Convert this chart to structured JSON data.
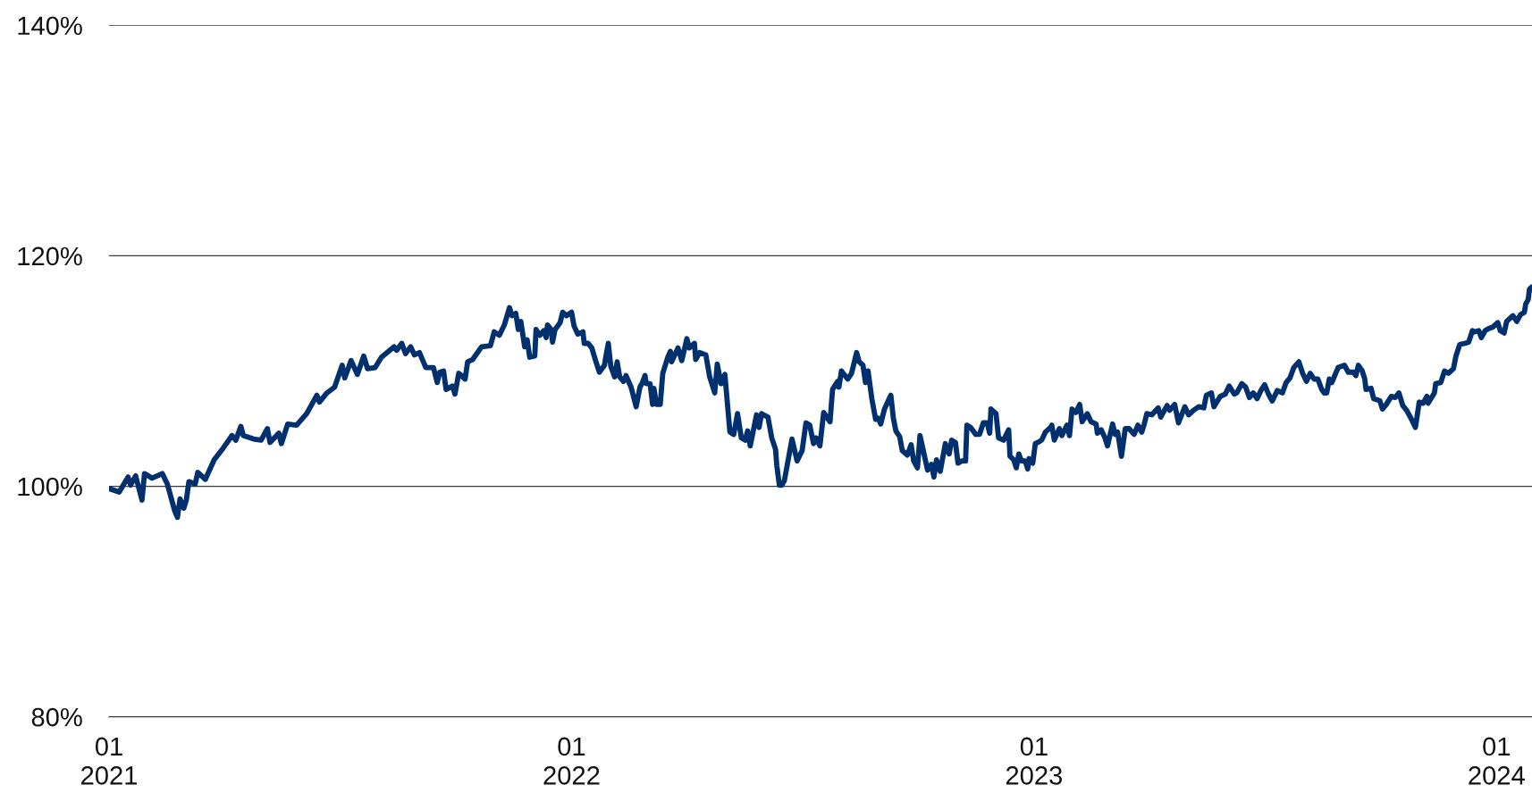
{
  "chart_data": {
    "type": "line",
    "color": "#00306e",
    "grid": "y",
    "xlim": [
      "2021-01-01",
      "2024-01-29"
    ],
    "ylim": [
      80,
      140
    ],
    "xticks": [
      {
        "value": "2021-01-01",
        "label": "01\n2021"
      },
      {
        "value": "2022-01-01",
        "label": "01\n2022"
      },
      {
        "value": "2023-01-01",
        "label": "01\n2023"
      },
      {
        "value": "2024-01-01",
        "label": "01\n2024"
      }
    ],
    "yticks": [
      {
        "value": 80,
        "label": "80%"
      },
      {
        "value": 100,
        "label": "100%"
      },
      {
        "value": 120,
        "label": "120%"
      },
      {
        "value": 140,
        "label": "140%"
      }
    ],
    "x": [
      "2021-01-01",
      "2021-01-09",
      "2021-01-16",
      "2021-01-18",
      "2021-01-22",
      "2021-01-27",
      "2021-01-29",
      "2021-02-04",
      "2021-02-12",
      "2021-02-16",
      "2021-02-22",
      "2021-02-24",
      "2021-02-26",
      "2021-03-01",
      "2021-03-03",
      "2021-03-05",
      "2021-03-10",
      "2021-03-12",
      "2021-03-18",
      "2021-03-25",
      "2021-04-01",
      "2021-04-08",
      "2021-04-11",
      "2021-04-15",
      "2021-04-17",
      "2021-04-25",
      "2021-05-01",
      "2021-05-06",
      "2021-05-08",
      "2021-05-15",
      "2021-05-17",
      "2021-05-22",
      "2021-05-29",
      "2021-06-06",
      "2021-06-14",
      "2021-06-16",
      "2021-06-22",
      "2021-06-28",
      "2021-07-04",
      "2021-07-06",
      "2021-07-11",
      "2021-07-16",
      "2021-07-21",
      "2021-07-24",
      "2021-07-30",
      "2021-08-04",
      "2021-08-14",
      "2021-08-16",
      "2021-08-20",
      "2021-08-23",
      "2021-08-27",
      "2021-08-30",
      "2021-09-03",
      "2021-09-08",
      "2021-09-14",
      "2021-09-17",
      "2021-09-19",
      "2021-09-22",
      "2021-09-24",
      "2021-09-29",
      "2021-10-01",
      "2021-10-04",
      "2021-10-09",
      "2021-10-11",
      "2021-10-15",
      "2021-10-22",
      "2021-10-29",
      "2021-11-01",
      "2021-11-05",
      "2021-11-09",
      "2021-11-13",
      "2021-11-15",
      "2021-11-18",
      "2021-11-20",
      "2021-11-22",
      "2021-11-25",
      "2021-11-27",
      "2021-11-29",
      "2021-12-03",
      "2021-12-04",
      "2021-12-07",
      "2021-12-10",
      "2021-12-12",
      "2021-12-13",
      "2021-12-16",
      "2021-12-17",
      "2021-12-19",
      "2021-12-23",
      "2021-12-25",
      "2021-12-28",
      "2022-01-01",
      "2022-01-03",
      "2022-01-06",
      "2022-01-10",
      "2022-01-11",
      "2022-01-14",
      "2022-01-17",
      "2022-01-20",
      "2022-01-23",
      "2022-01-27",
      "2022-01-28",
      "2022-01-30",
      "2022-02-01",
      "2022-02-04",
      "2022-02-06",
      "2022-02-08",
      "2022-02-11",
      "2022-02-13",
      "2022-02-17",
      "2022-02-21",
      "2022-02-24",
      "2022-02-26",
      "2022-02-28",
      "2022-03-01",
      "2022-03-04",
      "2022-03-06",
      "2022-03-07",
      "2022-03-09",
      "2022-03-12",
      "2022-03-14",
      "2022-03-18",
      "2022-03-20",
      "2022-03-21",
      "2022-03-26",
      "2022-03-29",
      "2022-04-02",
      "2022-04-04",
      "2022-04-08",
      "2022-04-09",
      "2022-04-12",
      "2022-04-17",
      "2022-04-20",
      "2022-04-24",
      "2022-04-26",
      "2022-04-29",
      "2022-05-02",
      "2022-05-06",
      "2022-05-09",
      "2022-05-12",
      "2022-05-15",
      "2022-05-18",
      "2022-05-20",
      "2022-05-22",
      "2022-05-27",
      "2022-05-29",
      "2022-05-31",
      "2022-06-05",
      "2022-06-08",
      "2022-06-11",
      "2022-06-12",
      "2022-06-14",
      "2022-06-16",
      "2022-06-18",
      "2022-06-24",
      "2022-06-28",
      "2022-07-02",
      "2022-07-05",
      "2022-07-08",
      "2022-07-11",
      "2022-07-13",
      "2022-07-16",
      "2022-07-19",
      "2022-07-24",
      "2022-07-26",
      "2022-07-30",
      "2022-07-31",
      "2022-08-02",
      "2022-08-07",
      "2022-08-10",
      "2022-08-14",
      "2022-08-16",
      "2022-08-19",
      "2022-08-21",
      "2022-08-23",
      "2022-08-26",
      "2022-08-29",
      "2022-08-31",
      "2022-09-02",
      "2022-09-05",
      "2022-09-10",
      "2022-09-12",
      "2022-09-14",
      "2022-09-17",
      "2022-09-19",
      "2022-09-23",
      "2022-09-26",
      "2022-09-28",
      "2022-10-01",
      "2022-10-03",
      "2022-10-09",
      "2022-10-12",
      "2022-10-14",
      "2022-10-16",
      "2022-10-19",
      "2022-10-23",
      "2022-10-26",
      "2022-10-28",
      "2022-10-31",
      "2022-11-02",
      "2022-11-05",
      "2022-11-08",
      "2022-11-09",
      "2022-11-12",
      "2022-11-16",
      "2022-11-19",
      "2022-11-22",
      "2022-11-25",
      "2022-11-27",
      "2022-11-28",
      "2022-12-02",
      "2022-12-04",
      "2022-12-08",
      "2022-12-12",
      "2022-12-13",
      "2022-12-16",
      "2022-12-18",
      "2022-12-20",
      "2022-12-22",
      "2022-12-25",
      "2022-12-27",
      "2022-12-28",
      "2022-12-31",
      "2023-01-02",
      "2023-01-04",
      "2023-01-07",
      "2023-01-10",
      "2023-01-14",
      "2023-01-15",
      "2023-01-17",
      "2023-01-21",
      "2023-01-23",
      "2023-01-27",
      "2023-01-29",
      "2023-01-31",
      "2023-02-03",
      "2023-02-06",
      "2023-02-08",
      "2023-02-12",
      "2023-02-15",
      "2023-02-19",
      "2023-02-20",
      "2023-02-23",
      "2023-02-26",
      "2023-02-28",
      "2023-03-04",
      "2023-03-06",
      "2023-03-08",
      "2023-03-11",
      "2023-03-14",
      "2023-03-17",
      "2023-03-21",
      "2023-03-24",
      "2023-03-27",
      "2023-03-29",
      "2023-03-31",
      "2023-04-04",
      "2023-04-09",
      "2023-04-11",
      "2023-04-16",
      "2023-04-18",
      "2023-04-22",
      "2023-04-25",
      "2023-04-30",
      "2023-05-03",
      "2023-05-07",
      "2023-05-11",
      "2023-05-15",
      "2023-05-17",
      "2023-05-21",
      "2023-05-23",
      "2023-05-28",
      "2023-06-01",
      "2023-06-04",
      "2023-06-08",
      "2023-06-10",
      "2023-06-14",
      "2023-06-17",
      "2023-06-20",
      "2023-06-23",
      "2023-06-26",
      "2023-06-29",
      "2023-07-02",
      "2023-07-05",
      "2023-07-08",
      "2023-07-12",
      "2023-07-16",
      "2023-07-19",
      "2023-07-22",
      "2023-07-25",
      "2023-07-29",
      "2023-08-01",
      "2023-08-04",
      "2023-08-07",
      "2023-08-10",
      "2023-08-13",
      "2023-08-16",
      "2023-08-18",
      "2023-08-20",
      "2023-08-22",
      "2023-08-24",
      "2023-08-29",
      "2023-09-03",
      "2023-09-06",
      "2023-09-10",
      "2023-09-12",
      "2023-09-14",
      "2023-09-17",
      "2023-09-19",
      "2023-09-20",
      "2023-09-24",
      "2023-09-26",
      "2023-09-29",
      "2023-10-01",
      "2023-10-03",
      "2023-10-06",
      "2023-10-10",
      "2023-10-13",
      "2023-10-16",
      "2023-10-19",
      "2023-10-22",
      "2023-10-25",
      "2023-10-29",
      "2023-11-01",
      "2023-11-04",
      "2023-11-07",
      "2023-11-08",
      "2023-11-13",
      "2023-11-14",
      "2023-11-18",
      "2023-11-21",
      "2023-11-24",
      "2023-11-28",
      "2023-11-30",
      "2023-12-03",
      "2023-12-07",
      "2023-12-10",
      "2023-12-13",
      "2023-12-15",
      "2023-12-18",
      "2023-12-20",
      "2023-12-23",
      "2023-12-26",
      "2023-12-29",
      "2024-01-02",
      "2024-01-04",
      "2024-01-07",
      "2024-01-09",
      "2024-01-14",
      "2024-01-17",
      "2024-01-20",
      "2024-01-23",
      "2024-01-24",
      "2024-01-26",
      "2024-01-27",
      "2024-01-29"
    ],
    "values": [
      99.8,
      99.5,
      100.8,
      100.1,
      100.9,
      98.8,
      101.1,
      100.7,
      101.1,
      100.2,
      97.8,
      97.3,
      98.9,
      98.1,
      98.8,
      100.4,
      100.2,
      101.2,
      100.6,
      102.3,
      103.3,
      104.4,
      104.0,
      105.2,
      104.4,
      104.1,
      104.0,
      105.0,
      103.8,
      104.6,
      103.7,
      105.4,
      105.3,
      106.3,
      107.9,
      107.3,
      108.1,
      108.6,
      110.5,
      109.4,
      110.9,
      109.7,
      111.3,
      110.2,
      110.3,
      111.2,
      112.1,
      111.8,
      112.4,
      111.5,
      112.1,
      111.4,
      111.6,
      110.3,
      110.3,
      109.0,
      109.9,
      110.0,
      108.4,
      108.7,
      108.0,
      109.8,
      109.3,
      110.8,
      111.0,
      112.1,
      112.2,
      113.4,
      113.1,
      114.0,
      115.5,
      114.8,
      115.0,
      113.6,
      114.3,
      112.1,
      112.7,
      111.2,
      111.3,
      113.6,
      113.1,
      113.5,
      112.9,
      114.0,
      113.6,
      112.5,
      113.6,
      114.2,
      115.1,
      114.8,
      115.1,
      113.9,
      113.2,
      113.4,
      112.4,
      112.4,
      112.0,
      110.9,
      109.9,
      110.5,
      111.2,
      112.4,
      110.4,
      109.5,
      110.8,
      109.5,
      109.1,
      109.6,
      108.6,
      106.9,
      108.6,
      109.0,
      109.6,
      108.9,
      108.9,
      107.1,
      108.5,
      107.1,
      107.1,
      109.8,
      111.2,
      111.7,
      110.8,
      112.0,
      110.9,
      112.8,
      112.0,
      112.4,
      111.0,
      111.6,
      111.4,
      109.5,
      108.1,
      110.6,
      108.9,
      109.7,
      104.7,
      104.5,
      106.3,
      104.2,
      104.0,
      104.8,
      103.5,
      106.2,
      105.1,
      106.3,
      106.0,
      104.2,
      103.2,
      101.8,
      100.1,
      100.1,
      100.5,
      104.1,
      102.2,
      103.1,
      105.5,
      105.3,
      103.7,
      104.2,
      103.5,
      106.4,
      105.6,
      108.4,
      109.1,
      108.6,
      110.0,
      109.3,
      109.8,
      111.6,
      110.8,
      110.5,
      109.0,
      110.0,
      107.6,
      105.8,
      105.9,
      105.4,
      106.7,
      107.9,
      105.9,
      104.8,
      104.3,
      103.1,
      102.7,
      103.6,
      102.2,
      101.6,
      104.4,
      101.4,
      101.9,
      100.8,
      102.3,
      101.3,
      103.7,
      102.8,
      104.0,
      103.8,
      102.0,
      102.2,
      102.2,
      105.3,
      105.1,
      104.5,
      104.5,
      105.5,
      105.5,
      104.6,
      106.7,
      106.3,
      104.2,
      104.0,
      104.9,
      102.6,
      102.3,
      101.6,
      102.8,
      102.2,
      102.2,
      101.5,
      102.4,
      102.0,
      103.7,
      103.8,
      104.0,
      104.7,
      105.1,
      105.3,
      104.0,
      105.0,
      104.4,
      105.3,
      104.4,
      106.7,
      106.4,
      107.1,
      105.6,
      106.3,
      105.6,
      105.4,
      104.6,
      104.9,
      104.2,
      103.5,
      105.4,
      104.5,
      104.7,
      102.6,
      105.0,
      105.0,
      104.5,
      105.3,
      104.7,
      105.4,
      106.3,
      106.2,
      106.8,
      106.0,
      107.0,
      106.6,
      107.1,
      105.5,
      106.9,
      106.2,
      106.6,
      106.9,
      106.8,
      107.9,
      108.1,
      106.9,
      107.8,
      108.0,
      108.7,
      108.0,
      108.1,
      108.9,
      108.6,
      107.7,
      108.1,
      107.6,
      108.3,
      108.8,
      108.0,
      107.4,
      108.3,
      108.1,
      109.0,
      109.4,
      110.3,
      110.8,
      109.8,
      109.1,
      109.8,
      109.3,
      109.3,
      108.4,
      108.1,
      108.1,
      109.3,
      109.0,
      110.3,
      110.5,
      109.9,
      109.9,
      109.6,
      110.5,
      110.0,
      109.3,
      108.4,
      108.5,
      107.6,
      107.5,
      107.4,
      106.7,
      107.1,
      107.8,
      107.7,
      108.1,
      107.0,
      106.6,
      106.0,
      105.1,
      107.3,
      107.2,
      107.8,
      107.2,
      108.1,
      108.9,
      109.0,
      110.0,
      109.8,
      110.2,
      111.3,
      112.3,
      112.4,
      112.5,
      113.5,
      113.4,
      113.5,
      112.9,
      113.5,
      113.7,
      113.8,
      114.2,
      113.5,
      113.3,
      114.3,
      114.8,
      114.3,
      114.9,
      115.1,
      115.8,
      116.2,
      117.1,
      117.3
    ]
  }
}
